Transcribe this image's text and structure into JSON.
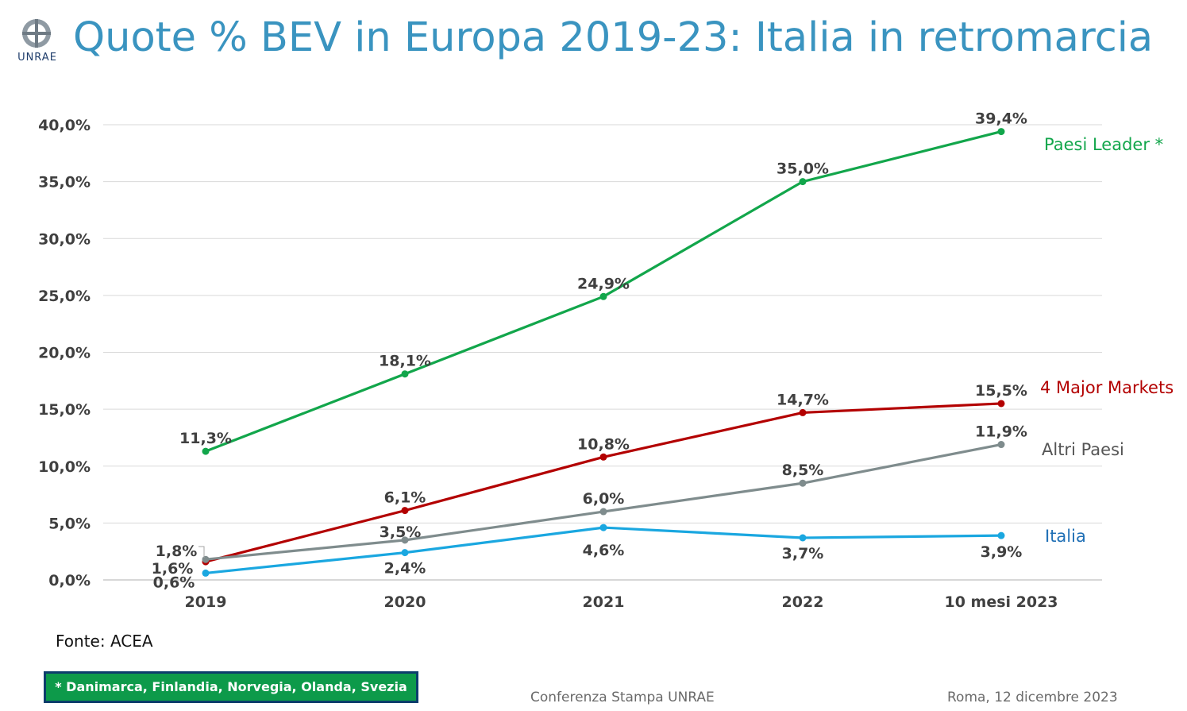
{
  "header": {
    "title": "Quote % BEV in Europa 2019-23: Italia in retromarcia",
    "logo_text": "UNRAE"
  },
  "chart_data": {
    "type": "line",
    "title": "Quote % BEV in Europa 2019-23: Italia in retromarcia",
    "categories": [
      "2019",
      "2020",
      "2021",
      "2022",
      "10 mesi 2023"
    ],
    "ylim": [
      0,
      40
    ],
    "yticks": [
      "0,0%",
      "5,0%",
      "10,0%",
      "15,0%",
      "20,0%",
      "25,0%",
      "30,0%",
      "35,0%",
      "40,0%"
    ],
    "grid": true,
    "series": [
      {
        "name": "Paesi Leader *",
        "color": "#12a64b",
        "values": [
          11.3,
          18.1,
          24.9,
          35.0,
          39.4
        ],
        "labels": [
          "11,3%",
          "18,1%",
          "24,9%",
          "35,0%",
          "39,4%"
        ]
      },
      {
        "name": "4 Major Markets",
        "color": "#b30000",
        "values": [
          1.6,
          6.1,
          10.8,
          14.7,
          15.5
        ],
        "labels": [
          "1,6%",
          "6,1%",
          "10,8%",
          "14,7%",
          "15,5%"
        ]
      },
      {
        "name": "Altri Paesi",
        "color": "#7f8c8d",
        "values": [
          1.8,
          3.5,
          6.0,
          8.5,
          11.9
        ],
        "labels": [
          "1,8%",
          "3,5%",
          "6,0%",
          "8,5%",
          "11,9%"
        ]
      },
      {
        "name": "Italia",
        "color": "#1aa7e0",
        "values": [
          0.6,
          2.4,
          4.6,
          3.7,
          3.9
        ],
        "labels": [
          "0,6%",
          "2,4%",
          "4,6%",
          "3,7%",
          "3,9%"
        ]
      }
    ],
    "legend_text_colors": [
      "#12a64b",
      "#b30000",
      "#555555",
      "#1f6fb5"
    ]
  },
  "footer": {
    "source": "Fonte: ACEA",
    "note": "* Danimarca, Finlandia, Norvegia, Olanda, Svezia",
    "center": "Conferenza Stampa UNRAE",
    "right": "Roma, 12 dicembre 2023"
  }
}
